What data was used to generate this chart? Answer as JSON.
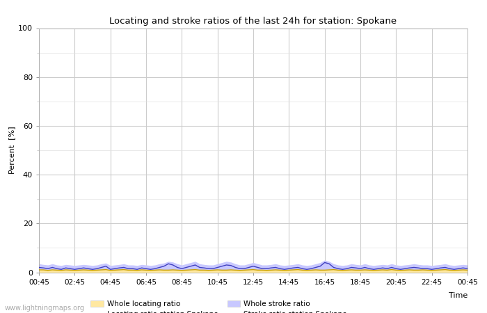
{
  "title": "Locating and stroke ratios of the last 24h for station: Spokane",
  "xlabel": "Time",
  "ylabel": "Percent  [%]",
  "ylim": [
    0,
    100
  ],
  "yticks_major": [
    0,
    20,
    40,
    60,
    80,
    100
  ],
  "yticks_minor": [
    10,
    30,
    50,
    70,
    90
  ],
  "x_labels": [
    "00:45",
    "02:45",
    "04:45",
    "06:45",
    "08:45",
    "10:45",
    "12:45",
    "14:45",
    "16:45",
    "18:45",
    "20:45",
    "22:45",
    "00:45"
  ],
  "background_color": "#ffffff",
  "grid_color_major": "#cccccc",
  "grid_color_minor": "#e0e0e0",
  "watermark": "www.lightningmaps.org",
  "whole_locating_fill_color": "#ffe8a0",
  "whole_stroke_fill_color": "#c8c8ff",
  "locating_line_color": "#c8a000",
  "stroke_line_color": "#4040c0",
  "n_points": 97,
  "whole_locating_ratio": [
    1.2,
    1.1,
    1.0,
    1.2,
    1.0,
    0.9,
    1.1,
    1.0,
    0.9,
    1.0,
    1.1,
    1.0,
    0.9,
    1.0,
    1.1,
    1.2,
    0.9,
    1.0,
    1.1,
    1.2,
    1.0,
    1.0,
    0.9,
    1.1,
    1.0,
    0.9,
    1.0,
    1.1,
    1.0,
    1.0,
    1.1,
    1.0,
    0.9,
    1.0,
    1.1,
    1.2,
    1.0,
    1.0,
    0.9,
    1.0,
    1.1,
    1.0,
    1.0,
    1.1,
    1.0,
    0.9,
    1.0,
    1.1,
    1.2,
    1.0,
    1.0,
    0.9,
    1.0,
    1.1,
    1.0,
    0.9,
    1.0,
    1.1,
    1.2,
    1.0,
    0.9,
    1.0,
    1.1,
    1.0,
    1.0,
    1.1,
    1.2,
    1.0,
    0.9,
    1.0,
    1.1,
    1.0,
    1.0,
    1.1,
    1.0,
    0.9,
    1.0,
    1.1,
    1.0,
    1.2,
    1.0,
    0.9,
    1.0,
    1.1,
    1.0,
    1.0,
    1.1,
    1.0,
    0.9,
    1.0,
    1.1,
    1.2,
    1.0,
    0.9,
    1.0,
    1.1,
    1.0
  ],
  "whole_stroke_ratio": [
    3.5,
    3.2,
    3.0,
    3.5,
    3.0,
    2.8,
    3.2,
    3.0,
    2.8,
    3.0,
    3.2,
    3.0,
    2.8,
    3.0,
    3.5,
    3.8,
    2.8,
    3.0,
    3.2,
    3.5,
    3.0,
    3.0,
    2.8,
    3.2,
    3.0,
    2.8,
    3.0,
    3.5,
    3.8,
    4.5,
    4.2,
    3.5,
    3.0,
    3.5,
    4.0,
    4.5,
    3.5,
    3.2,
    3.0,
    3.0,
    3.5,
    4.0,
    4.5,
    4.2,
    3.5,
    3.0,
    3.0,
    3.5,
    4.0,
    3.5,
    3.0,
    3.0,
    3.2,
    3.5,
    3.0,
    2.8,
    3.0,
    3.2,
    3.5,
    3.0,
    2.8,
    3.0,
    3.5,
    4.0,
    5.0,
    4.5,
    3.5,
    3.0,
    2.8,
    3.0,
    3.5,
    3.2,
    3.0,
    3.5,
    3.0,
    2.8,
    3.0,
    3.2,
    3.0,
    3.5,
    3.0,
    2.8,
    3.0,
    3.2,
    3.5,
    3.2,
    3.0,
    3.0,
    2.8,
    3.0,
    3.2,
    3.5,
    3.0,
    2.8,
    3.0,
    3.2,
    3.0
  ],
  "locating_ratio": [
    1.0,
    1.0,
    0.8,
    1.0,
    0.9,
    0.8,
    1.0,
    0.9,
    0.8,
    0.9,
    1.0,
    0.9,
    0.8,
    0.9,
    1.0,
    1.1,
    0.8,
    0.9,
    1.0,
    1.1,
    0.9,
    0.9,
    0.8,
    1.0,
    0.9,
    0.8,
    0.9,
    1.0,
    0.9,
    0.9,
    1.0,
    0.9,
    0.8,
    0.9,
    1.0,
    1.1,
    0.9,
    0.9,
    0.8,
    0.9,
    1.0,
    0.9,
    0.9,
    1.0,
    0.9,
    0.8,
    0.9,
    1.0,
    1.1,
    0.9,
    0.9,
    0.8,
    0.9,
    1.0,
    0.9,
    0.8,
    0.9,
    1.0,
    1.1,
    0.9,
    0.8,
    0.9,
    1.0,
    0.9,
    0.9,
    1.0,
    1.1,
    0.9,
    0.8,
    0.9,
    1.0,
    0.9,
    0.9,
    1.0,
    0.9,
    0.8,
    0.9,
    1.0,
    0.9,
    1.1,
    0.9,
    0.8,
    0.9,
    1.0,
    0.9,
    0.9,
    1.0,
    0.9,
    0.8,
    0.9,
    1.0,
    1.1,
    0.9,
    0.8,
    0.9,
    1.0,
    0.9
  ],
  "stroke_ratio": [
    2.0,
    1.8,
    1.5,
    2.0,
    1.5,
    1.2,
    1.8,
    1.5,
    1.2,
    1.5,
    1.8,
    1.5,
    1.2,
    1.5,
    2.0,
    2.5,
    1.2,
    1.5,
    1.8,
    2.0,
    1.5,
    1.5,
    1.2,
    1.8,
    1.5,
    1.2,
    1.5,
    2.0,
    2.5,
    3.5,
    3.0,
    2.0,
    1.5,
    2.0,
    2.5,
    3.0,
    2.0,
    1.8,
    1.5,
    1.5,
    2.0,
    2.5,
    3.0,
    2.8,
    2.0,
    1.5,
    1.5,
    2.0,
    2.5,
    2.0,
    1.5,
    1.5,
    1.8,
    2.0,
    1.5,
    1.2,
    1.5,
    1.8,
    2.0,
    1.5,
    1.2,
    1.5,
    2.0,
    2.5,
    4.0,
    3.5,
    2.0,
    1.5,
    1.2,
    1.5,
    2.0,
    1.8,
    1.5,
    2.0,
    1.5,
    1.2,
    1.5,
    1.8,
    1.5,
    2.0,
    1.5,
    1.2,
    1.5,
    1.8,
    2.0,
    1.8,
    1.5,
    1.5,
    1.2,
    1.5,
    1.8,
    2.0,
    1.5,
    1.2,
    1.5,
    1.8,
    1.5
  ]
}
